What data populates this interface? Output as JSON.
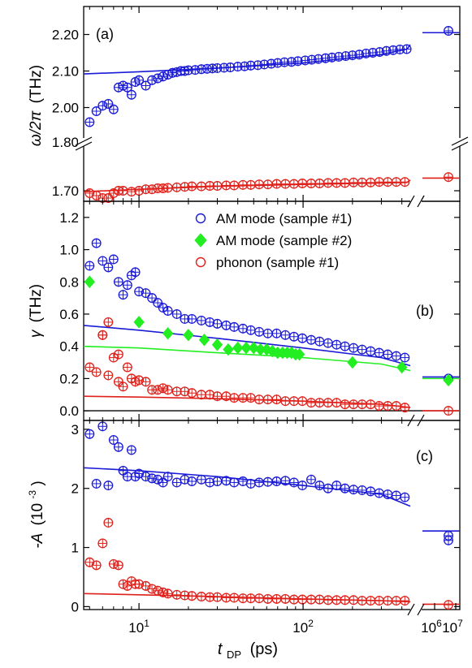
{
  "chart_data": {
    "type": "scatter",
    "xlabel": "t_DP (ps)",
    "xlabel_main": "t",
    "xlabel_sub": "DP",
    "xlabel_unit": "(ps)",
    "xscale": "log",
    "xlim": [
      4.6,
      450
    ],
    "x_break_ticks": [
      "10^6",
      "10^7"
    ],
    "x_ticks": [
      "10^1",
      "10^2"
    ],
    "panels": [
      {
        "label": "(a)",
        "ylabel": "ω/2π (THz)",
        "ylabel_symbol": "ω/2π",
        "ylabel_unit": "(THz)",
        "upper_ylim": [
          1.95,
          2.25
        ],
        "upper_yticks": [
          "2.20",
          "2.10",
          "2.00"
        ],
        "lower_ylim": [
          1.675,
          1.8
        ],
        "lower_yticks": [
          "1.80",
          "1.70"
        ],
        "series": [
          {
            "marker": "open-circle",
            "color": "#1a1ad6",
            "x": [
              5,
              5.5,
              6,
              6.5,
              7,
              7.5,
              8,
              8.5,
              9,
              9.5,
              10,
              11,
              12,
              13,
              14,
              15,
              16,
              17,
              18,
              19,
              20,
              22,
              24,
              26,
              28,
              30,
              33,
              36,
              40,
              44,
              48,
              53,
              58,
              64,
              70,
              77,
              85,
              93,
              103,
              113,
              124,
              137,
              150,
              165,
              182,
              200,
              220,
              242,
              266,
              293,
              322,
              354,
              389,
              428
            ],
            "y": [
              1.96,
              1.99,
              2.005,
              2.01,
              1.995,
              2.055,
              2.06,
              2.055,
              2.035,
              2.07,
              2.075,
              2.06,
              2.075,
              2.08,
              2.085,
              2.09,
              2.095,
              2.097,
              2.1,
              2.1,
              2.102,
              2.103,
              2.105,
              2.106,
              2.107,
              2.108,
              2.109,
              2.11,
              2.112,
              2.113,
              2.115,
              2.116,
              2.118,
              2.12,
              2.122,
              2.124,
              2.125,
              2.127,
              2.129,
              2.131,
              2.133,
              2.135,
              2.137,
              2.139,
              2.141,
              2.143,
              2.145,
              2.148,
              2.15,
              2.152,
              2.155,
              2.157,
              2.159,
              2.16
            ],
            "late_point_y": 2.21
          },
          {
            "marker": "open-circle",
            "color": "#e0201a",
            "x": [
              5,
              5.5,
              6,
              6.5,
              7,
              7.5,
              8,
              9,
              10,
              11,
              12,
              13,
              14,
              15,
              17,
              19,
              21,
              24,
              27,
              30,
              34,
              38,
              43,
              48,
              54,
              61,
              69,
              78,
              88,
              99,
              112,
              126,
              142,
              160,
              180,
              203,
              229,
              258,
              291,
              328,
              370,
              417
            ],
            "y": [
              1.695,
              1.69,
              1.685,
              1.685,
              1.695,
              1.7,
              1.7,
              1.698,
              1.7,
              1.703,
              1.703,
              1.705,
              1.705,
              1.706,
              1.707,
              1.708,
              1.709,
              1.709,
              1.71,
              1.71,
              1.711,
              1.711,
              1.712,
              1.712,
              1.713,
              1.713,
              1.714,
              1.714,
              1.714,
              1.715,
              1.715,
              1.715,
              1.716,
              1.716,
              1.716,
              1.717,
              1.717,
              1.717,
              1.718,
              1.718,
              1.718,
              1.718
            ],
            "late_point_y": 1.728
          }
        ],
        "fits": [
          {
            "color": "#1a1ad6",
            "x": [
              4.6,
              10,
              30,
              100,
              300,
              430
            ],
            "y": [
              2.092,
              2.098,
              2.108,
              2.122,
              2.145,
              2.16
            ],
            "late_x_end_y": 2.172,
            "late_y": 2.205
          },
          {
            "color": "#e0201a",
            "x": [
              4.6,
              10,
              30,
              100,
              300,
              430
            ],
            "y": [
              1.698,
              1.703,
              1.709,
              1.713,
              1.716,
              1.717
            ],
            "late_x_end_y": 1.722,
            "late_y": 1.726
          }
        ]
      },
      {
        "label": "(b)",
        "ylabel": "γ (THz)",
        "ylabel_symbol": "γ",
        "ylabel_unit": "(THz)",
        "ylim": [
          -0.06,
          1.3
        ],
        "yticks": [
          "0.0",
          "0.2",
          "0.4",
          "0.6",
          "0.8",
          "1.0",
          "1.2"
        ],
        "legend": [
          {
            "label": "AM mode (sample #1)",
            "marker": "open-circle",
            "color": "#1a1ad6"
          },
          {
            "label": "AM mode (sample #2)",
            "marker": "diamond",
            "color": "#22ee22"
          },
          {
            "label": "phonon (sample #1)",
            "marker": "open-circle",
            "color": "#e0201a"
          }
        ],
        "series": [
          {
            "name": "AM mode (sample #1)",
            "marker": "open-circle",
            "color": "#1a1ad6",
            "x": [
              5,
              5.5,
              6,
              6.5,
              7,
              7.5,
              8,
              8.5,
              9,
              9.5,
              10,
              11,
              12,
              13,
              14,
              15,
              17,
              19,
              21,
              24,
              27,
              30,
              34,
              38,
              43,
              48,
              54,
              61,
              69,
              78,
              88,
              99,
              112,
              126,
              142,
              160,
              180,
              203,
              229,
              258,
              291,
              328,
              370,
              417
            ],
            "y": [
              0.9,
              1.04,
              0.93,
              0.89,
              0.94,
              0.8,
              0.72,
              0.78,
              0.84,
              0.86,
              0.74,
              0.73,
              0.7,
              0.67,
              0.64,
              0.62,
              0.6,
              0.57,
              0.57,
              0.56,
              0.55,
              0.54,
              0.53,
              0.52,
              0.51,
              0.5,
              0.49,
              0.48,
              0.48,
              0.47,
              0.46,
              0.45,
              0.44,
              0.43,
              0.42,
              0.41,
              0.4,
              0.39,
              0.38,
              0.37,
              0.36,
              0.35,
              0.34,
              0.33
            ]
          },
          {
            "name": "AM mode (sample #2)",
            "marker": "diamond",
            "color": "#22ee22",
            "x": [
              5,
              10,
              15,
              20,
              25,
              30,
              35,
              40,
              45,
              50,
              55,
              60,
              65,
              70,
              75,
              80,
              85,
              90,
              95,
              200,
              400
            ],
            "y": [
              0.8,
              0.55,
              0.48,
              0.47,
              0.44,
              0.41,
              0.38,
              0.39,
              0.39,
              0.39,
              0.38,
              0.38,
              0.37,
              0.36,
              0.36,
              0.36,
              0.36,
              0.35,
              0.35,
              0.3,
              0.27
            ]
          },
          {
            "name": "phonon (sample #1)",
            "marker": "open-circle",
            "color": "#e0201a",
            "x": [
              5,
              5.5,
              6,
              6.5,
              7,
              7.5,
              8,
              8.5,
              9,
              9.5,
              10,
              11,
              12,
              13,
              14,
              15,
              17,
              19,
              21,
              24,
              27,
              30,
              34,
              38,
              43,
              48,
              54,
              61,
              69,
              78,
              88,
              99,
              112,
              126,
              142,
              160,
              180,
              203,
              229,
              258,
              291,
              328,
              370,
              417
            ],
            "y": [
              0.27,
              0.24,
              0.47,
              0.22,
              0.33,
              0.18,
              0.15,
              0.27,
              0.2,
              0.18,
              0.19,
              0.18,
              0.13,
              0.13,
              0.14,
              0.13,
              0.12,
              0.12,
              0.11,
              0.1,
              0.1,
              0.09,
              0.09,
              0.08,
              0.08,
              0.08,
              0.07,
              0.07,
              0.07,
              0.06,
              0.06,
              0.06,
              0.05,
              0.05,
              0.05,
              0.05,
              0.04,
              0.04,
              0.04,
              0.04,
              0.03,
              0.03,
              0.03,
              0.02
            ],
            "extra_points": [
              [
                6.5,
                0.55
              ],
              [
                7.5,
                0.35
              ],
              [
                6,
                0.47
              ]
            ]
          }
        ],
        "late_points": [
          {
            "color": "#1a1ad6",
            "marker": "open-circle",
            "y": 0.2
          },
          {
            "color": "#22ee22",
            "marker": "diamond",
            "y": 0.19
          },
          {
            "color": "#e0201a",
            "marker": "open-circle",
            "y": 0.0
          }
        ],
        "fits": [
          {
            "color": "#1a1ad6",
            "x": [
              4.6,
              10,
              30,
              100,
              300,
              450
            ],
            "y": [
              0.53,
              0.5,
              0.45,
              0.39,
              0.33,
              0.28
            ],
            "late_y": 0.21
          },
          {
            "color": "#22ee22",
            "x": [
              4.6,
              10,
              30,
              100,
              300,
              450
            ],
            "y": [
              0.4,
              0.39,
              0.36,
              0.33,
              0.29,
              0.25
            ],
            "late_y": 0.2
          },
          {
            "color": "#e0201a",
            "x": [
              4.6,
              10,
              30,
              100,
              300,
              450
            ],
            "y": [
              0.09,
              0.085,
              0.075,
              0.06,
              0.04,
              0.02
            ],
            "late_y": 0.0
          }
        ]
      },
      {
        "label": "(c)",
        "ylabel": "-A (10^-3)",
        "ylabel_symbol": "-A",
        "ylabel_unit": "(10",
        "ylabel_exp": "-3",
        "ylim": [
          -0.05,
          3.15
        ],
        "yticks": [
          "0",
          "1",
          "2",
          "3"
        ],
        "series": [
          {
            "marker": "open-circle",
            "color": "#1a1ad6",
            "x": [
              5,
              5.5,
              6,
              6.5,
              7,
              7.5,
              8,
              8.5,
              9,
              9.5,
              10,
              11,
              12,
              13,
              14,
              15,
              17,
              19,
              21,
              24,
              27,
              30,
              34,
              38,
              43,
              48,
              54,
              61,
              69,
              78,
              88,
              99,
              112,
              126,
              142,
              160,
              180,
              203,
              229,
              258,
              291,
              328,
              370,
              417
            ],
            "y": [
              2.92,
              2.08,
              3.05,
              2.05,
              2.82,
              2.7,
              2.3,
              2.2,
              2.65,
              2.2,
              2.25,
              2.2,
              2.17,
              2.15,
              2.1,
              2.2,
              2.1,
              2.15,
              2.12,
              2.15,
              2.1,
              2.12,
              2.13,
              2.1,
              2.12,
              2.08,
              2.1,
              2.11,
              2.12,
              2.13,
              2.1,
              2.05,
              2.15,
              2.05,
              2.0,
              2.05,
              2.0,
              1.98,
              1.97,
              1.95,
              1.92,
              1.9,
              1.88,
              1.85
            ]
          },
          {
            "marker": "open-circle",
            "color": "#e0201a",
            "x": [
              5,
              5.5,
              6,
              6.5,
              7,
              7.5,
              8,
              8.5,
              9,
              9.5,
              10,
              11,
              12,
              13,
              14,
              15,
              17,
              19,
              21,
              24,
              27,
              30,
              34,
              38,
              43,
              48,
              54,
              61,
              69,
              78,
              88,
              99,
              112,
              126,
              142,
              160,
              180,
              203,
              229,
              258,
              291,
              328,
              370,
              417
            ],
            "y": [
              0.75,
              0.7,
              1.07,
              1.42,
              0.72,
              0.7,
              0.38,
              0.35,
              0.43,
              0.38,
              0.38,
              0.35,
              0.3,
              0.27,
              0.24,
              0.22,
              0.2,
              0.19,
              0.18,
              0.17,
              0.16,
              0.16,
              0.15,
              0.15,
              0.14,
              0.14,
              0.14,
              0.13,
              0.13,
              0.13,
              0.12,
              0.12,
              0.12,
              0.12,
              0.11,
              0.11,
              0.11,
              0.11,
              0.1,
              0.1,
              0.1,
              0.1,
              0.1,
              0.1
            ]
          }
        ],
        "late_points": [
          {
            "color": "#1a1ad6",
            "marker": "open-circle",
            "y": 1.2
          },
          {
            "color": "#1a1ad6",
            "marker": "open-circle",
            "y": 1.12
          },
          {
            "color": "#e0201a",
            "marker": "open-circle",
            "y": 0.03
          }
        ],
        "fits": [
          {
            "color": "#1a1ad6",
            "x": [
              4.6,
              10,
              30,
              100,
              300,
              450
            ],
            "y": [
              2.35,
              2.3,
              2.2,
              2.05,
              1.9,
              1.7
            ],
            "late_y": 1.28
          },
          {
            "color": "#e0201a",
            "x": [
              4.6,
              10,
              30,
              100,
              300,
              450
            ],
            "y": [
              0.22,
              0.2,
              0.17,
              0.13,
              0.1,
              0.08
            ],
            "late_y": 0.04
          }
        ]
      }
    ]
  }
}
